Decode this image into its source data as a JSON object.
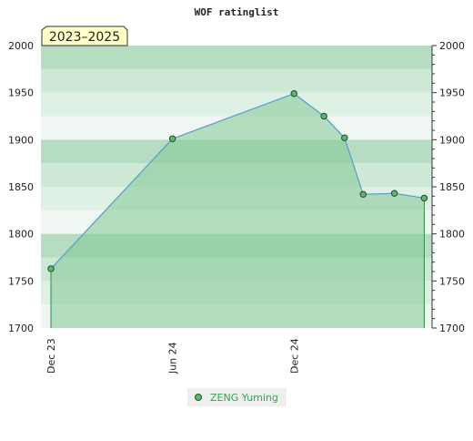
{
  "chart_data": {
    "type": "area",
    "title": "WOF ratinglist",
    "badge": "2023–2025",
    "xlabel": "",
    "ylabel": "",
    "ylim": [
      1700,
      2000
    ],
    "yticks": [
      1700,
      1750,
      1800,
      1850,
      1900,
      1950,
      2000
    ],
    "ytick_labels": [
      "1700",
      "1750",
      "1800",
      "1850",
      "1900",
      "1950",
      "2000"
    ],
    "x_domain": [
      "2023-12-01",
      "2025-06-24"
    ],
    "xticks": [
      {
        "date": "2023-12-01",
        "label": "Dec 23"
      },
      {
        "date": "2024-06-01",
        "label": "Jun 24"
      },
      {
        "date": "2024-12-01",
        "label": "Dec 24"
      }
    ],
    "series": [
      {
        "name": "ZENG Yuming",
        "color": "#3c8c46",
        "line_color": "#5aa0c8",
        "fill_color": "#82c896",
        "points": [
          {
            "x": "2023-12-01",
            "y": 1763
          },
          {
            "x": "2024-06-01",
            "y": 1901
          },
          {
            "x": "2024-12-01",
            "y": 1949
          },
          {
            "x": "2025-01-15",
            "y": 1925
          },
          {
            "x": "2025-02-15",
            "y": 1902
          },
          {
            "x": "2025-03-15",
            "y": 1842
          },
          {
            "x": "2025-05-01",
            "y": 1843
          },
          {
            "x": "2025-06-15",
            "y": 1838
          }
        ]
      }
    ],
    "grid": true,
    "legend_position": "bottom-center",
    "background_band_colors": [
      "#f0f7f2",
      "#dff0e4",
      "#cde8d5",
      "#b6dcc1"
    ]
  }
}
